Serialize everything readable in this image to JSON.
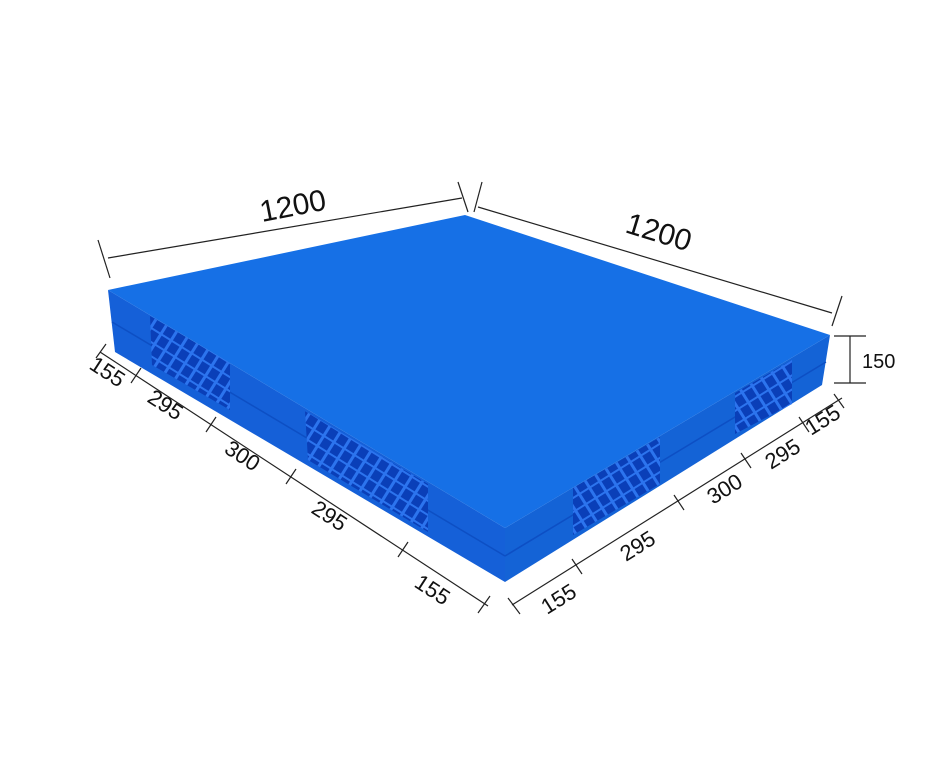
{
  "colors": {
    "top": "#1670e6",
    "side_left": "#1560d8",
    "side_right": "#1463d6",
    "opening": "#0a3fb8",
    "rib": "#2a6fe8"
  },
  "dimensions": {
    "length_top_left": "1200",
    "length_top_right": "1200",
    "height": "150",
    "left_side": [
      "155",
      "295",
      "300",
      "295",
      "155"
    ],
    "right_side": [
      "155",
      "295",
      "300",
      "295",
      "155"
    ]
  }
}
